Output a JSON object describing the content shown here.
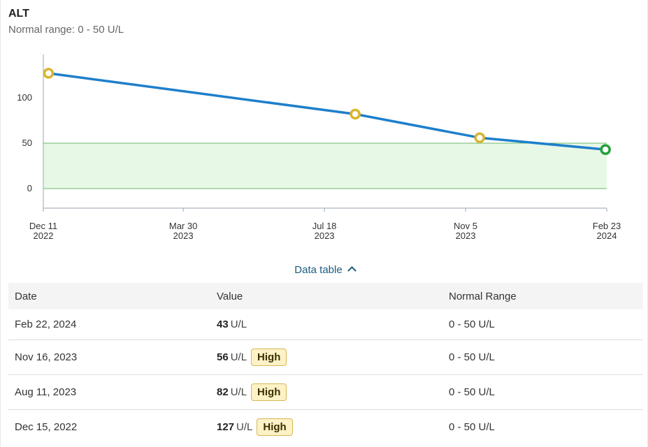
{
  "header": {
    "title": "ALT",
    "normal_range": "Normal range: 0 - 50 U/L"
  },
  "chart_data": {
    "type": "line",
    "x_label": "",
    "y_label": "",
    "ylim": [
      -20,
      145
    ],
    "y_ticks": [
      0,
      50,
      100
    ],
    "normal_range": [
      0,
      50
    ],
    "normal_fill_color": "#e8f8e6",
    "normal_line_color": "#6cb86a",
    "line_color": "#1e7fcb",
    "high_point_color": "#d9b52c",
    "normal_point_color": "#22a03a",
    "x_domain": [
      "2022-12-11",
      "2024-02-23"
    ],
    "x_ticks": [
      {
        "date": "2022-12-11",
        "line1": "Dec 11",
        "line2": "2022"
      },
      {
        "date": "2023-03-30",
        "line1": "Mar 30",
        "line2": "2023"
      },
      {
        "date": "2023-07-18",
        "line1": "Jul 18",
        "line2": "2023"
      },
      {
        "date": "2023-11-05",
        "line1": "Nov 5",
        "line2": "2023"
      },
      {
        "date": "2024-02-23",
        "line1": "Feb 23",
        "line2": "2024"
      }
    ],
    "series": [
      {
        "points": [
          {
            "x": "2022-12-15",
            "y": 127,
            "status": "high"
          },
          {
            "x": "2023-08-11",
            "y": 82,
            "status": "high"
          },
          {
            "x": "2023-11-16",
            "y": 56,
            "status": "high"
          },
          {
            "x": "2024-02-22",
            "y": 43,
            "status": "normal"
          }
        ]
      }
    ]
  },
  "data_table": {
    "toggle_label": "Data table",
    "headers": {
      "date": "Date",
      "value": "Value",
      "range": "Normal Range"
    },
    "rows": [
      {
        "date": "Feb 22, 2024",
        "value": "43",
        "unit": "U/L",
        "flag": "",
        "range": "0 - 50 U/L"
      },
      {
        "date": "Nov 16, 2023",
        "value": "56",
        "unit": "U/L",
        "flag": "High",
        "range": "0 - 50 U/L"
      },
      {
        "date": "Aug 11, 2023",
        "value": "82",
        "unit": "U/L",
        "flag": "High",
        "range": "0 - 50 U/L"
      },
      {
        "date": "Dec 15, 2022",
        "value": "127",
        "unit": "U/L",
        "flag": "High",
        "range": "0 - 50 U/L"
      }
    ]
  }
}
